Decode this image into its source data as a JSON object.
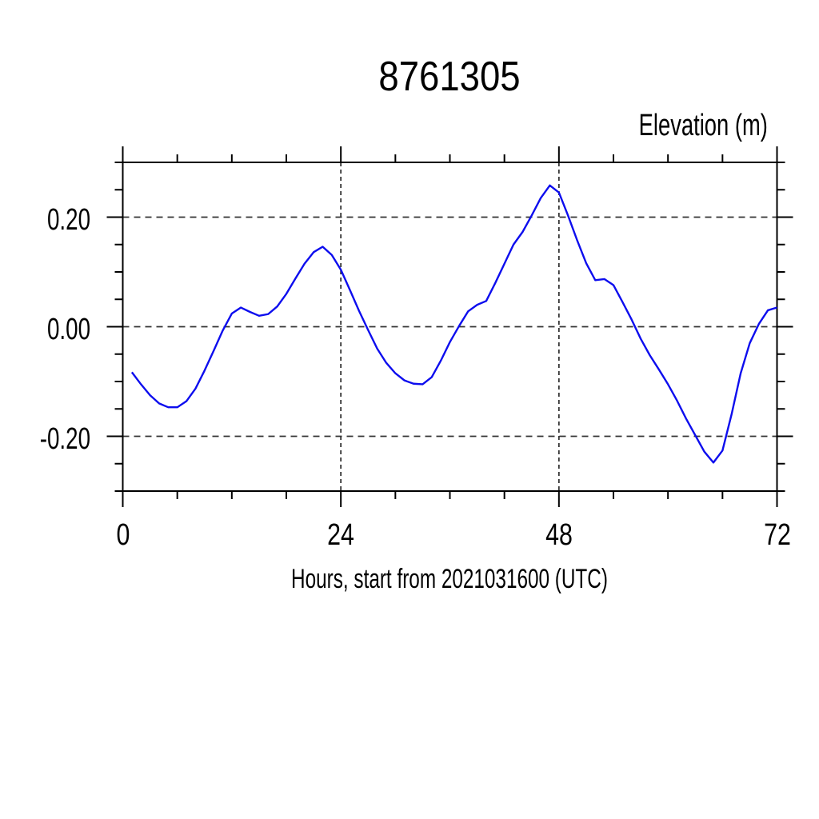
{
  "chart_data": {
    "type": "line",
    "title": "8761305",
    "ylabel": "Elevation (m)",
    "xlabel": "Hours, start from 2021031600 (UTC)",
    "xlim": [
      0,
      72
    ],
    "ylim": [
      -0.3,
      0.3
    ],
    "x_major_ticks": [
      0,
      24,
      48,
      72
    ],
    "x_minor_ticks": [
      6,
      12,
      18,
      30,
      36,
      42,
      54,
      60,
      66
    ],
    "x_grid": [
      24,
      48
    ],
    "x_tick_labels": [
      {
        "value": 0,
        "label": "0"
      },
      {
        "value": 24,
        "label": "24"
      },
      {
        "value": 48,
        "label": "48"
      },
      {
        "value": 72,
        "label": "72"
      }
    ],
    "y_major_ticks": [
      -0.2,
      0.0,
      0.2
    ],
    "y_minor_ticks": [
      -0.3,
      -0.25,
      -0.15,
      -0.1,
      -0.05,
      0.05,
      0.1,
      0.15,
      0.25,
      0.3
    ],
    "y_grid": [
      -0.2,
      0.0,
      0.2
    ],
    "y_tick_labels": [
      {
        "value": 0.2,
        "label": "0.20"
      },
      {
        "value": 0.0,
        "label": "0.00"
      },
      {
        "value": -0.2,
        "label": "-0.20"
      }
    ],
    "grid_on": true,
    "legend": "none",
    "line_color": "#0d0dee",
    "frame_color": "#000000",
    "series": [
      {
        "name": "elevation",
        "x": [
          1,
          2,
          3,
          4,
          5,
          6,
          7,
          8,
          9,
          10,
          11,
          12,
          13,
          14,
          15,
          16,
          17,
          18,
          19,
          20,
          21,
          22,
          23,
          24,
          25,
          26,
          27,
          28,
          29,
          30,
          31,
          32,
          33,
          34,
          35,
          36,
          37,
          38,
          39,
          40,
          41,
          42,
          43,
          44,
          45,
          46,
          47,
          48,
          49,
          50,
          51,
          52,
          53,
          54,
          55,
          56,
          57,
          58,
          59,
          60,
          61,
          62,
          63,
          64,
          65,
          66,
          67,
          68,
          69,
          70,
          71,
          72
        ],
        "y": [
          -0.083,
          -0.105,
          -0.125,
          -0.14,
          -0.147,
          -0.147,
          -0.136,
          -0.113,
          -0.08,
          -0.044,
          -0.007,
          0.024,
          0.035,
          0.027,
          0.02,
          0.023,
          0.037,
          0.06,
          0.088,
          0.115,
          0.136,
          0.146,
          0.131,
          0.104,
          0.067,
          0.029,
          -0.006,
          -0.04,
          -0.066,
          -0.085,
          -0.098,
          -0.104,
          -0.105,
          -0.092,
          -0.062,
          -0.028,
          0.001,
          0.028,
          0.04,
          0.047,
          0.08,
          0.115,
          0.15,
          0.173,
          0.203,
          0.235,
          0.258,
          0.245,
          0.203,
          0.158,
          0.116,
          0.085,
          0.087,
          0.076,
          0.045,
          0.013,
          -0.022,
          -0.052,
          -0.078,
          -0.105,
          -0.135,
          -0.168,
          -0.198,
          -0.228,
          -0.248,
          -0.226,
          -0.16,
          -0.085,
          -0.03,
          0.005,
          0.03,
          0.035
        ]
      }
    ]
  }
}
